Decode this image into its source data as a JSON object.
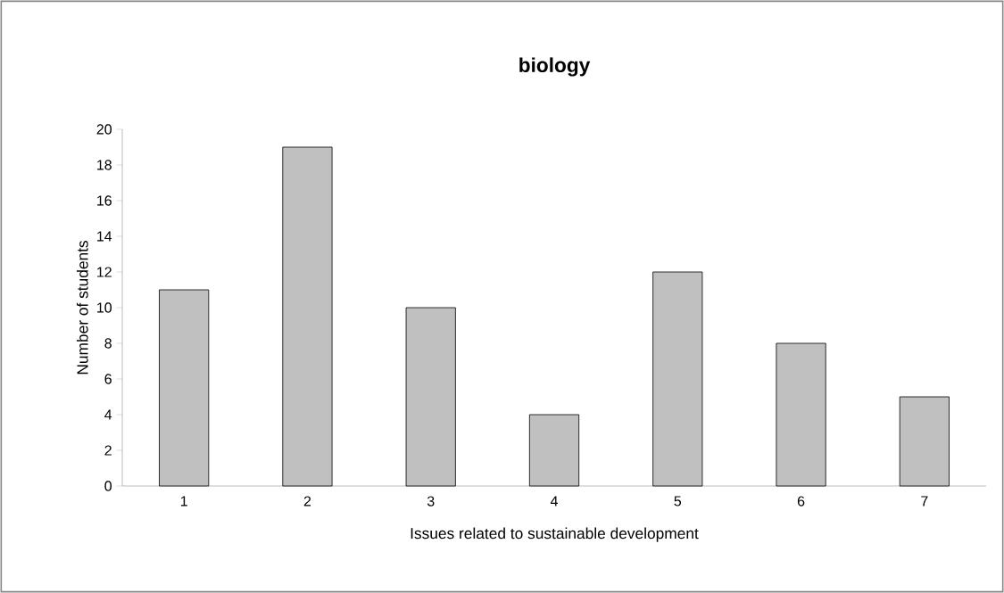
{
  "chart_data": {
    "type": "bar",
    "title": "biology",
    "xlabel": "Issues related to sustainable development",
    "ylabel": "Number of students",
    "categories": [
      "1",
      "2",
      "3",
      "4",
      "5",
      "6",
      "7"
    ],
    "values": [
      11,
      19,
      10,
      4,
      12,
      8,
      5
    ],
    "color": "#c0c0c0",
    "ylim": [
      0,
      20
    ],
    "yticks": [
      0,
      2,
      4,
      6,
      8,
      10,
      12,
      14,
      16,
      18,
      20
    ]
  }
}
